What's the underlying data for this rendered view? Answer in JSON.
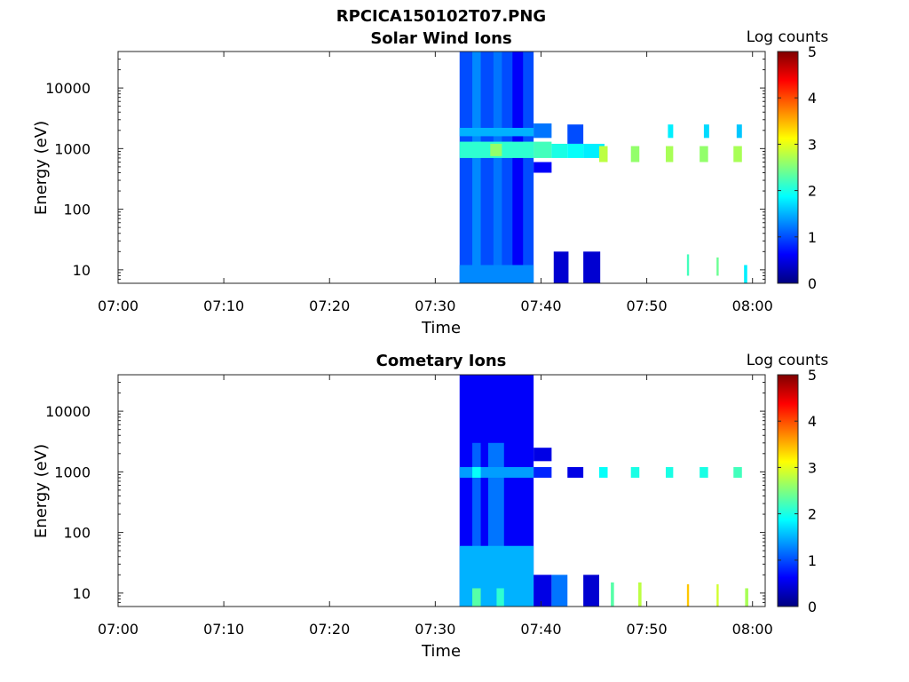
{
  "figure": {
    "title": "RPCICA150102T07.PNG"
  },
  "colormap": [
    "#00007f",
    "#0000ff",
    "#007fff",
    "#00ffff",
    "#7fff7f",
    "#ffff00",
    "#ff7f00",
    "#ff0000",
    "#7f0000"
  ],
  "chart_data": [
    {
      "type": "heatmap",
      "title": "Solar Wind Ions",
      "xlabel": "Time",
      "ylabel": "Energy (eV)",
      "colorbar_label": "Log counts",
      "x_ticks": [
        "07:00",
        "07:10",
        "07:20",
        "07:30",
        "07:40",
        "07:50",
        "08:00"
      ],
      "x_tick_minutes": [
        0,
        10,
        20,
        30,
        40,
        50,
        60
      ],
      "xlim_minutes": [
        0,
        61.2
      ],
      "y_ticks": [
        "10",
        "100",
        "1000",
        "10000"
      ],
      "y_tick_values": [
        10,
        100,
        1000,
        10000
      ],
      "ylim": [
        6,
        40000
      ],
      "y_scale": "log",
      "color_range": [
        0,
        5
      ],
      "colorbar_ticks": [
        "0",
        "1",
        "2",
        "3",
        "4",
        "5"
      ],
      "colorbar_tick_values": [
        0,
        1,
        2,
        3,
        4,
        5
      ],
      "data_start_minute": 32.3,
      "blocks": [
        {
          "t": [
            32.3,
            39.3
          ],
          "e": [
            6,
            40000
          ],
          "v": 1.0
        },
        {
          "t": [
            33.5,
            34.3
          ],
          "e": [
            6,
            40000
          ],
          "v": 1.3
        },
        {
          "t": [
            35.5,
            36.3
          ],
          "e": [
            6,
            40000
          ],
          "v": 1.2
        },
        {
          "t": [
            37.3,
            38.3
          ],
          "e": [
            6,
            40000
          ],
          "v": 0.6
        },
        {
          "t": [
            32.3,
            39.3
          ],
          "e": [
            700,
            1300
          ],
          "v": 2.1
        },
        {
          "t": [
            32.3,
            39.3
          ],
          "e": [
            1600,
            2200
          ],
          "v": 1.5
        },
        {
          "t": [
            35.2,
            36.3
          ],
          "e": [
            750,
            1200
          ],
          "v": 2.6
        },
        {
          "t": [
            32.3,
            39.3
          ],
          "e": [
            6,
            12
          ],
          "v": 1.3
        },
        {
          "t": [
            39.3,
            41.0
          ],
          "e": [
            1500,
            2600
          ],
          "v": 1.2
        },
        {
          "t": [
            39.3,
            41.0
          ],
          "e": [
            700,
            1300
          ],
          "v": 2.2
        },
        {
          "t": [
            39.3,
            41.0
          ],
          "e": [
            400,
            600
          ],
          "v": 0.6
        },
        {
          "t": [
            41.0,
            42.5
          ],
          "e": [
            700,
            1200
          ],
          "v": 2.0
        },
        {
          "t": [
            42.5,
            44.0
          ],
          "e": [
            1200,
            2500
          ],
          "v": 1.0
        },
        {
          "t": [
            42.5,
            44.0
          ],
          "e": [
            700,
            1200
          ],
          "v": 1.9
        },
        {
          "t": [
            44.0,
            46.0
          ],
          "e": [
            700,
            1200
          ],
          "v": 1.8
        },
        {
          "t": [
            41.2,
            42.6
          ],
          "e": [
            6,
            20
          ],
          "v": 0.4
        },
        {
          "t": [
            44.0,
            45.6
          ],
          "e": [
            6,
            20
          ],
          "v": 0.4
        },
        {
          "t": [
            45.5,
            46.3
          ],
          "e": [
            600,
            1100
          ],
          "v": 2.8
        },
        {
          "t": [
            48.5,
            49.3
          ],
          "e": [
            600,
            1100
          ],
          "v": 2.6
        },
        {
          "t": [
            51.8,
            52.5
          ],
          "e": [
            600,
            1100
          ],
          "v": 2.7
        },
        {
          "t": [
            55.0,
            55.8
          ],
          "e": [
            600,
            1100
          ],
          "v": 2.6
        },
        {
          "t": [
            58.2,
            59.0
          ],
          "e": [
            600,
            1100
          ],
          "v": 2.7
        },
        {
          "t": [
            52.0,
            52.5
          ],
          "e": [
            1500,
            2500
          ],
          "v": 1.8
        },
        {
          "t": [
            55.4,
            55.9
          ],
          "e": [
            1500,
            2500
          ],
          "v": 1.7
        },
        {
          "t": [
            58.5,
            59.0
          ],
          "e": [
            1500,
            2500
          ],
          "v": 1.6
        },
        {
          "t": [
            53.8,
            54.0
          ],
          "e": [
            8,
            18
          ],
          "v": 2.2
        },
        {
          "t": [
            56.6,
            56.8
          ],
          "e": [
            8,
            16
          ],
          "v": 2.4
        },
        {
          "t": [
            59.2,
            59.5
          ],
          "e": [
            6,
            12
          ],
          "v": 1.8
        }
      ]
    },
    {
      "type": "heatmap",
      "title": "Cometary Ions",
      "xlabel": "Time",
      "ylabel": "Energy (eV)",
      "colorbar_label": "Log counts",
      "x_ticks": [
        "07:00",
        "07:10",
        "07:20",
        "07:30",
        "07:40",
        "07:50",
        "08:00"
      ],
      "x_tick_minutes": [
        0,
        10,
        20,
        30,
        40,
        50,
        60
      ],
      "xlim_minutes": [
        0,
        61.2
      ],
      "y_ticks": [
        "10",
        "100",
        "1000",
        "10000"
      ],
      "y_tick_values": [
        10,
        100,
        1000,
        10000
      ],
      "ylim": [
        6,
        40000
      ],
      "y_scale": "log",
      "color_range": [
        0,
        5
      ],
      "colorbar_ticks": [
        "0",
        "1",
        "2",
        "3",
        "4",
        "5"
      ],
      "colorbar_tick_values": [
        0,
        1,
        2,
        3,
        4,
        5
      ],
      "data_start_minute": 32.3,
      "blocks": [
        {
          "t": [
            32.3,
            39.3
          ],
          "e": [
            6,
            40000
          ],
          "v": 0.6
        },
        {
          "t": [
            33.5,
            34.3
          ],
          "e": [
            6,
            3000
          ],
          "v": 1.1
        },
        {
          "t": [
            35.0,
            36.5
          ],
          "e": [
            6,
            3000
          ],
          "v": 1.2
        },
        {
          "t": [
            32.3,
            39.3
          ],
          "e": [
            6,
            60
          ],
          "v": 1.5
        },
        {
          "t": [
            33.5,
            34.3
          ],
          "e": [
            6,
            12
          ],
          "v": 2.3
        },
        {
          "t": [
            35.8,
            36.5
          ],
          "e": [
            6,
            12
          ],
          "v": 2.1
        },
        {
          "t": [
            32.3,
            39.3
          ],
          "e": [
            800,
            1200
          ],
          "v": 1.4
        },
        {
          "t": [
            33.5,
            34.3
          ],
          "e": [
            800,
            1200
          ],
          "v": 1.9
        },
        {
          "t": [
            39.3,
            41.0
          ],
          "e": [
            6,
            20
          ],
          "v": 0.5
        },
        {
          "t": [
            41.0,
            42.5
          ],
          "e": [
            6,
            20
          ],
          "v": 1.2
        },
        {
          "t": [
            39.3,
            41.0
          ],
          "e": [
            1500,
            2500
          ],
          "v": 0.5
        },
        {
          "t": [
            39.3,
            41.0
          ],
          "e": [
            800,
            1200
          ],
          "v": 0.8
        },
        {
          "t": [
            42.5,
            44.0
          ],
          "e": [
            800,
            1200
          ],
          "v": 0.5
        },
        {
          "t": [
            44.0,
            45.5
          ],
          "e": [
            6,
            20
          ],
          "v": 0.4
        },
        {
          "t": [
            45.5,
            46.3
          ],
          "e": [
            800,
            1200
          ],
          "v": 1.9
        },
        {
          "t": [
            48.5,
            49.3
          ],
          "e": [
            800,
            1200
          ],
          "v": 2.0
        },
        {
          "t": [
            51.8,
            52.5
          ],
          "e": [
            800,
            1200
          ],
          "v": 2.0
        },
        {
          "t": [
            55.0,
            55.8
          ],
          "e": [
            800,
            1200
          ],
          "v": 2.0
        },
        {
          "t": [
            58.2,
            59.0
          ],
          "e": [
            800,
            1200
          ],
          "v": 2.2
        },
        {
          "t": [
            49.2,
            49.5
          ],
          "e": [
            6,
            15
          ],
          "v": 2.8
        },
        {
          "t": [
            53.8,
            54.0
          ],
          "e": [
            6,
            14
          ],
          "v": 3.4
        },
        {
          "t": [
            56.6,
            56.8
          ],
          "e": [
            6,
            14
          ],
          "v": 2.9
        },
        {
          "t": [
            59.3,
            59.6
          ],
          "e": [
            6,
            12
          ],
          "v": 2.7
        },
        {
          "t": [
            46.6,
            46.9
          ],
          "e": [
            6,
            15
          ],
          "v": 2.3
        }
      ]
    }
  ]
}
